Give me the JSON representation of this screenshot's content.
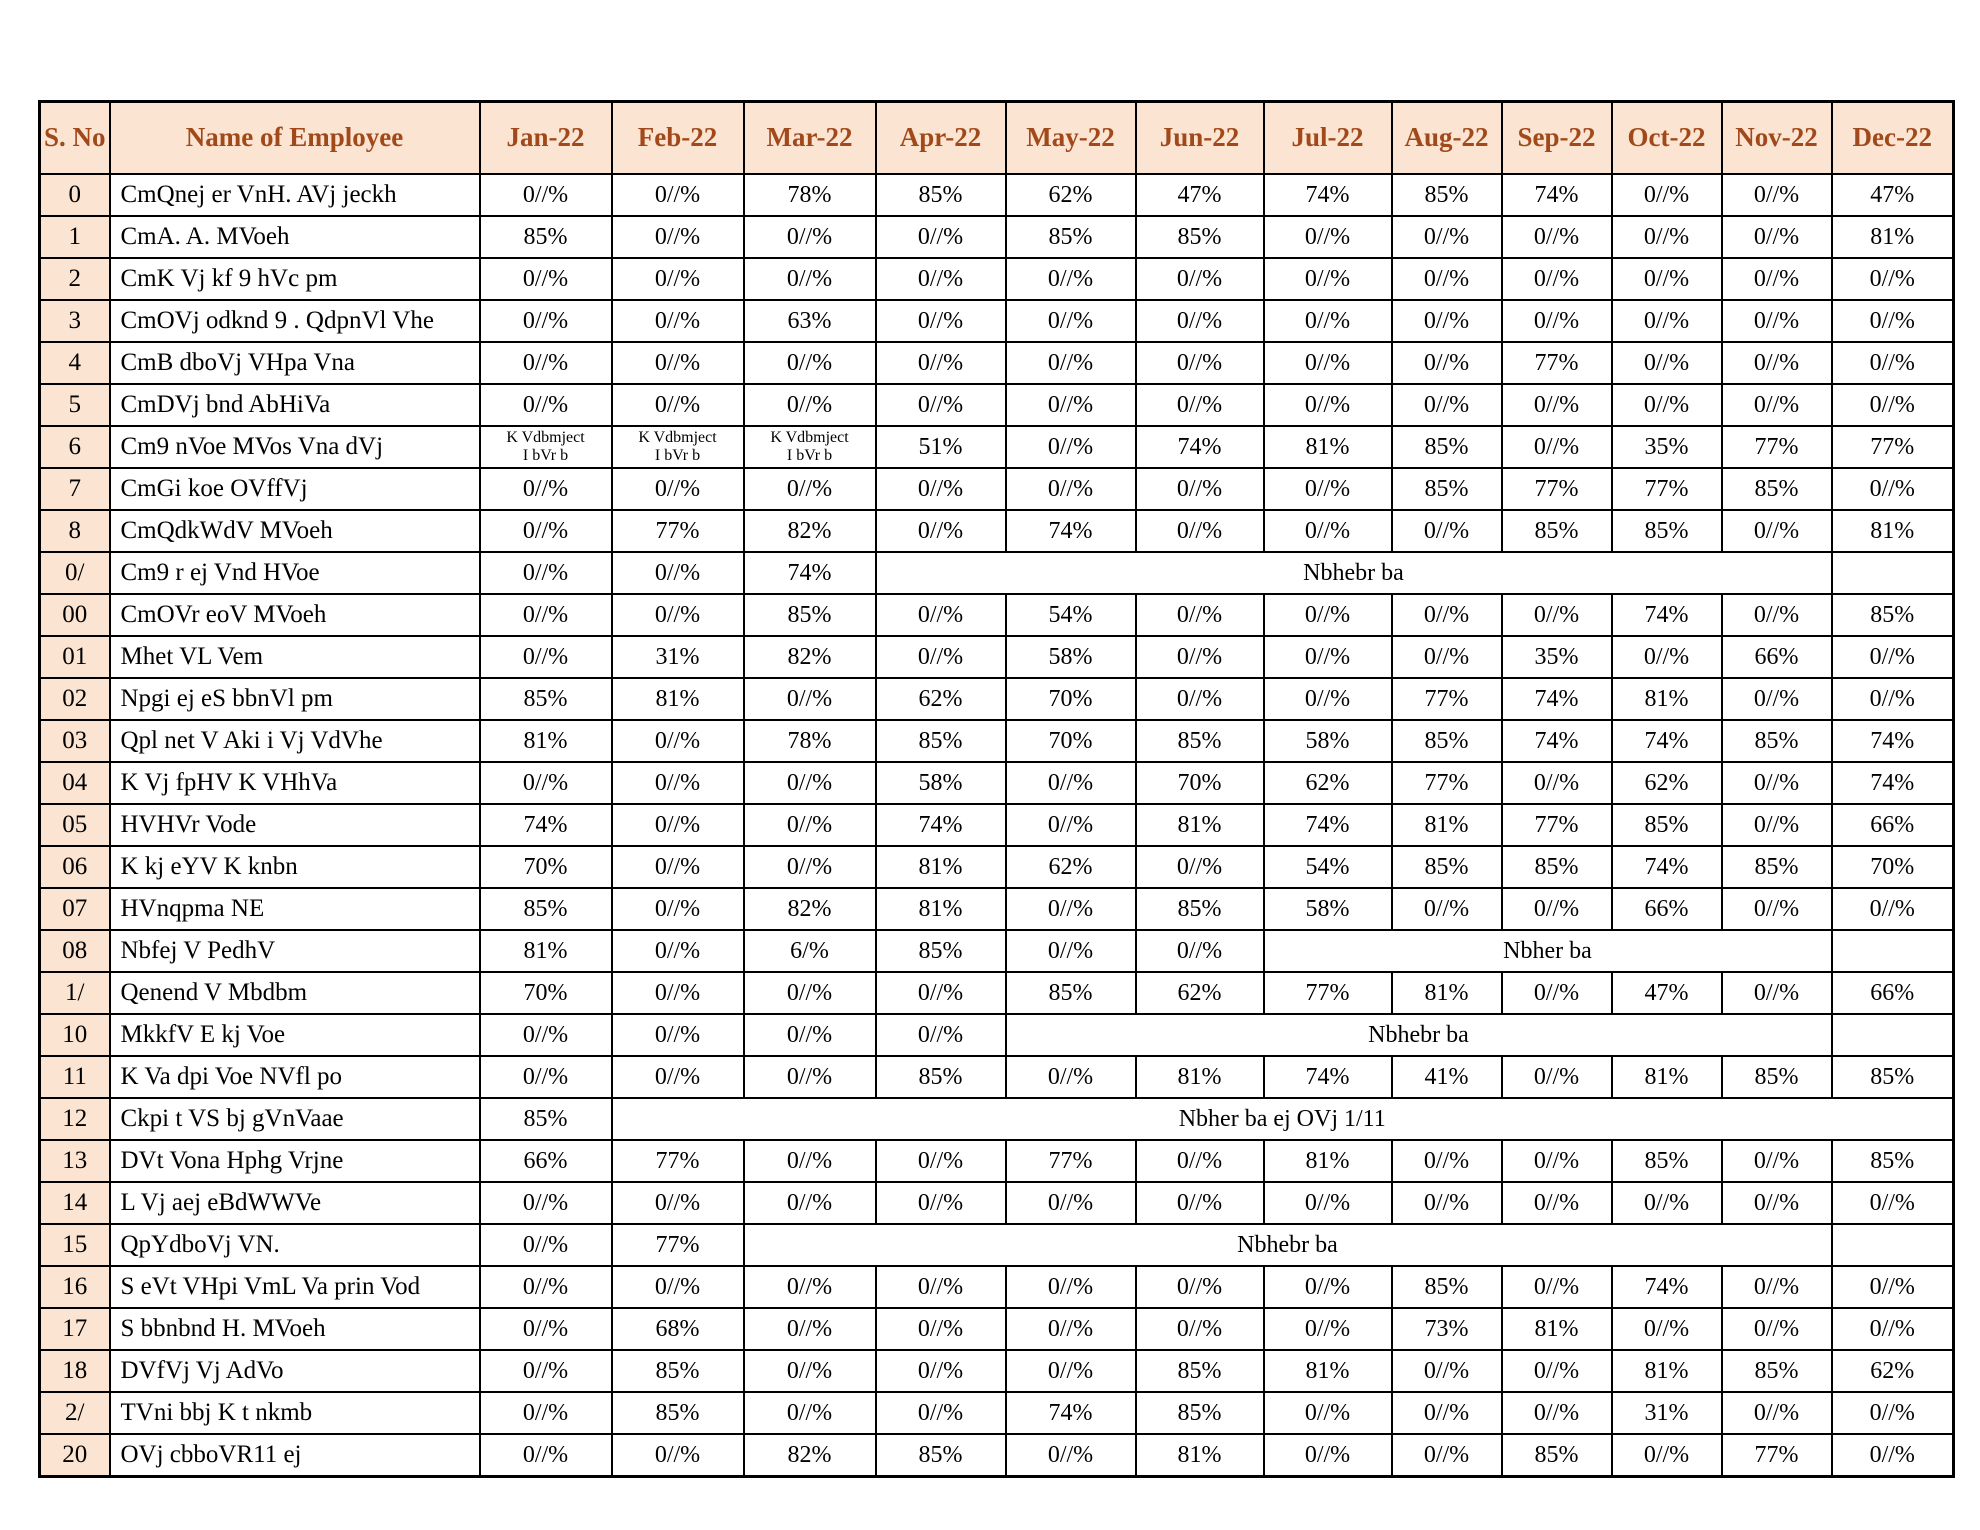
{
  "colors": {
    "header_bg": "#fbe4d1",
    "header_text": "#a1491a",
    "border": "#000000"
  },
  "table": {
    "columns": [
      "S. No",
      "Name of Employee",
      "Jan-22",
      "Feb-22",
      "Mar-22",
      "Apr-22",
      "May-22",
      "Jun-22",
      "Jul-22",
      "Aug-22",
      "Sep-22",
      "Oct-22",
      "Nov-22",
      "Dec-22"
    ],
    "rows": [
      {
        "sno": "0",
        "name": "CmQnej er VnH. AVj jeckh",
        "values": [
          "0//%",
          "0//%",
          "78%",
          "85%",
          "62%",
          "47%",
          "74%",
          "85%",
          "74%",
          "0//%",
          "0//%",
          "47%"
        ]
      },
      {
        "sno": "1",
        "name": "CmA. A. MVoeh",
        "values": [
          "85%",
          "0//%",
          "0//%",
          "0//%",
          "85%",
          "85%",
          "0//%",
          "0//%",
          "0//%",
          "0//%",
          "0//%",
          "81%"
        ]
      },
      {
        "sno": "2",
        "name": "CmK Vj kf 9 hVc pm",
        "values": [
          "0//%",
          "0//%",
          "0//%",
          "0//%",
          "0//%",
          "0//%",
          "0//%",
          "0//%",
          "0//%",
          "0//%",
          "0//%",
          "0//%"
        ]
      },
      {
        "sno": "3",
        "name": "CmOVj odknd 9 . QdpnVl Vhe",
        "values": [
          "0//%",
          "0//%",
          "63%",
          "0//%",
          "0//%",
          "0//%",
          "0//%",
          "0//%",
          "0//%",
          "0//%",
          "0//%",
          "0//%"
        ]
      },
      {
        "sno": "4",
        "name": "CmB dboVj VHpa Vna",
        "values": [
          "0//%",
          "0//%",
          "0//%",
          "0//%",
          "0//%",
          "0//%",
          "0//%",
          "0//%",
          "77%",
          "0//%",
          "0//%",
          "0//%"
        ]
      },
      {
        "sno": "5",
        "name": "CmDVj bnd AbHiVa",
        "values": [
          "0//%",
          "0//%",
          "0//%",
          "0//%",
          "0//%",
          "0//%",
          "0//%",
          "0//%",
          "0//%",
          "0//%",
          "0//%",
          "0//%"
        ]
      },
      {
        "sno": "6",
        "name": "Cm9 nVoe MVos Vna dVj",
        "values": [
          {
            "lines": [
              "K Vdbmject",
              "I bVr b"
            ]
          },
          {
            "lines": [
              "K Vdbmject",
              "I bVr b"
            ]
          },
          {
            "lines": [
              "K Vdbmject",
              "I bVr b"
            ]
          },
          "51%",
          "0//%",
          "74%",
          "81%",
          "85%",
          "0//%",
          "35%",
          "77%",
          "77%"
        ]
      },
      {
        "sno": "7",
        "name": "CmGi koe OVffVj",
        "values": [
          "0//%",
          "0//%",
          "0//%",
          "0//%",
          "0//%",
          "0//%",
          "0//%",
          "85%",
          "77%",
          "77%",
          "85%",
          "0//%"
        ]
      },
      {
        "sno": "8",
        "name": "CmQdkWdV MVoeh",
        "values": [
          "0//%",
          "77%",
          "82%",
          "0//%",
          "74%",
          "0//%",
          "0//%",
          "0//%",
          "85%",
          "85%",
          "0//%",
          "81%"
        ]
      },
      {
        "sno": "0/",
        "name": "Cm9 r ej Vnd HVoe",
        "values": [
          "0//%",
          "0//%",
          "74%",
          {
            "text": "Nbhebr ba",
            "colspan": 8
          },
          ""
        ]
      },
      {
        "sno": "00",
        "name": "CmOVr eoV MVoeh",
        "values": [
          "0//%",
          "0//%",
          "85%",
          "0//%",
          "54%",
          "0//%",
          "0//%",
          "0//%",
          "0//%",
          "74%",
          "0//%",
          "85%"
        ]
      },
      {
        "sno": "01",
        "name": "Mhet VL Vem",
        "values": [
          "0//%",
          "31%",
          "82%",
          "0//%",
          "58%",
          "0//%",
          "0//%",
          "0//%",
          "35%",
          "0//%",
          "66%",
          "0//%"
        ]
      },
      {
        "sno": "02",
        "name": "Npgi ej eS bbnVl pm",
        "values": [
          "85%",
          "81%",
          "0//%",
          "62%",
          "70%",
          "0//%",
          "0//%",
          "77%",
          "74%",
          "81%",
          "0//%",
          "0//%"
        ]
      },
      {
        "sno": "03",
        "name": "Qpl net V Aki i Vj VdVhe",
        "values": [
          "81%",
          "0//%",
          "78%",
          "85%",
          "70%",
          "85%",
          "58%",
          "85%",
          "74%",
          "74%",
          "85%",
          "74%"
        ]
      },
      {
        "sno": "04",
        "name": "K Vj fpHV K VHhVa",
        "values": [
          "0//%",
          "0//%",
          "0//%",
          "58%",
          "0//%",
          "70%",
          "62%",
          "77%",
          "0//%",
          "62%",
          "0//%",
          "74%"
        ]
      },
      {
        "sno": "05",
        "name": "HVHVr Vode",
        "values": [
          "74%",
          "0//%",
          "0//%",
          "74%",
          "0//%",
          "81%",
          "74%",
          "81%",
          "77%",
          "85%",
          "0//%",
          "66%"
        ]
      },
      {
        "sno": "06",
        "name": "K kj eYV K knbn",
        "values": [
          "70%",
          "0//%",
          "0//%",
          "81%",
          "62%",
          "0//%",
          "54%",
          "85%",
          "85%",
          "74%",
          "85%",
          "70%"
        ]
      },
      {
        "sno": "07",
        "name": "HVnqpma NE",
        "values": [
          "85%",
          "0//%",
          "82%",
          "81%",
          "0//%",
          "85%",
          "58%",
          "0//%",
          "0//%",
          "66%",
          "0//%",
          "0//%"
        ]
      },
      {
        "sno": "08",
        "name": "Nbfej V PedhV",
        "values": [
          "81%",
          "0//%",
          "6/%",
          "85%",
          "0//%",
          "0//%",
          {
            "text": "Nbher ba",
            "colspan": 5
          },
          ""
        ]
      },
      {
        "sno": "1/",
        "name": "Qenend V Mbdbm",
        "values": [
          "70%",
          "0//%",
          "0//%",
          "0//%",
          "85%",
          "62%",
          "77%",
          "81%",
          "0//%",
          "47%",
          "0//%",
          "66%"
        ]
      },
      {
        "sno": "10",
        "name": "MkkfV E kj Voe",
        "values": [
          "0//%",
          "0//%",
          "0//%",
          "0//%",
          {
            "text": "Nbhebr ba",
            "colspan": 7
          },
          ""
        ]
      },
      {
        "sno": "11",
        "name": "K Va dpi Voe NVfl po",
        "values": [
          "0//%",
          "0//%",
          "0//%",
          "85%",
          "0//%",
          "81%",
          "74%",
          "41%",
          "0//%",
          "81%",
          "85%",
          "85%"
        ]
      },
      {
        "sno": "12",
        "name": "Ckpi t VS bj gVnVaae",
        "values": [
          "85%",
          {
            "text": "Nbher ba ej OVj 1/11",
            "colspan": 11
          }
        ]
      },
      {
        "sno": "13",
        "name": "DVt Vona Hphg Vrjne",
        "values": [
          "66%",
          "77%",
          "0//%",
          "0//%",
          "77%",
          "0//%",
          "81%",
          "0//%",
          "0//%",
          "85%",
          "0//%",
          "85%"
        ]
      },
      {
        "sno": "14",
        "name": "L Vj aej eBdWWVe",
        "values": [
          "0//%",
          "0//%",
          "0//%",
          "0//%",
          "0//%",
          "0//%",
          "0//%",
          "0//%",
          "0//%",
          "0//%",
          "0//%",
          "0//%"
        ]
      },
      {
        "sno": "15",
        "name": "QpYdboVj VN.",
        "values": [
          "0//%",
          "77%",
          {
            "text": "Nbhebr ba",
            "colspan": 9
          },
          ""
        ]
      },
      {
        "sno": "16",
        "name": "S eVt VHpi VmL Va prin Vod",
        "values": [
          "0//%",
          "0//%",
          "0//%",
          "0//%",
          "0//%",
          "0//%",
          "0//%",
          "85%",
          "0//%",
          "74%",
          "0//%",
          "0//%"
        ]
      },
      {
        "sno": "17",
        "name": "S bbnbnd H. MVoeh",
        "values": [
          "0//%",
          "68%",
          "0//%",
          "0//%",
          "0//%",
          "0//%",
          "0//%",
          "73%",
          "81%",
          "0//%",
          "0//%",
          "0//%"
        ]
      },
      {
        "sno": "18",
        "name": "DVfVj Vj AdVo",
        "values": [
          "0//%",
          "85%",
          "0//%",
          "0//%",
          "0//%",
          "85%",
          "81%",
          "0//%",
          "0//%",
          "81%",
          "85%",
          "62%"
        ]
      },
      {
        "sno": "2/",
        "name": "TVni bbj K t nkmb",
        "values": [
          "0//%",
          "85%",
          "0//%",
          "0//%",
          "74%",
          "85%",
          "0//%",
          "0//%",
          "0//%",
          "31%",
          "0//%",
          "0//%"
        ]
      },
      {
        "sno": "20",
        "name": "OVj cbboVR11 ej",
        "values": [
          "0//%",
          "0//%",
          "82%",
          "85%",
          "0//%",
          "81%",
          "0//%",
          "0//%",
          "85%",
          "0//%",
          "77%",
          "0//%"
        ]
      }
    ]
  }
}
